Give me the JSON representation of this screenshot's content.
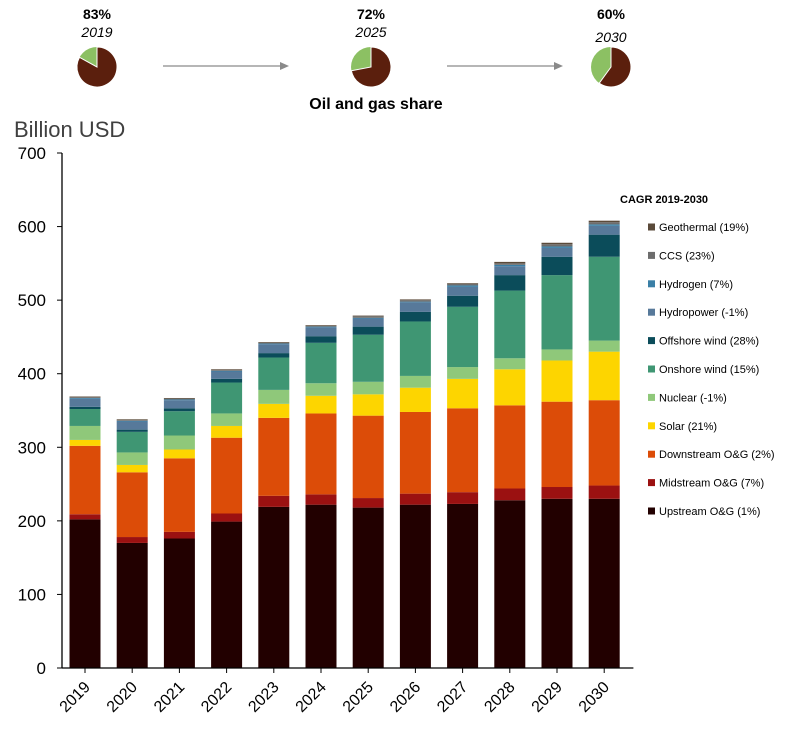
{
  "pies": [
    {
      "share_label": "83%",
      "year_label": "2019",
      "share": 0.83
    },
    {
      "share_label": "72%",
      "year_label": "2025",
      "share": 0.72
    },
    {
      "share_label": "60%",
      "year_label": "2030",
      "share": 0.6
    }
  ],
  "pies_caption": "Oil and gas share",
  "colors": {
    "pie_share": "#5b1f0d",
    "pie_rest": "#8cc063",
    "arrow": "#8a8a8a",
    "axis": "#000000"
  },
  "chart_data": {
    "type": "bar",
    "stacked": true,
    "title": "",
    "ylabel": "Billion USD",
    "xlabel": "",
    "ylim": [
      0,
      700
    ],
    "yticks": [
      0,
      100,
      200,
      300,
      400,
      500,
      600,
      700
    ],
    "categories": [
      "2019",
      "2020",
      "2021",
      "2022",
      "2023",
      "2024",
      "2025",
      "2026",
      "2027",
      "2028",
      "2029",
      "2030"
    ],
    "legend_title": "CAGR 2019-2030",
    "legend_position": "right",
    "series": [
      {
        "name": "Upstream O&G (1%)",
        "color": "#220000",
        "values": [
          202,
          170,
          176,
          199,
          219,
          222,
          218,
          222,
          223,
          228,
          230,
          230
        ]
      },
      {
        "name": "Midstream O&G (7%)",
        "color": "#9b1111",
        "values": [
          7,
          8,
          9,
          11,
          15,
          14,
          13,
          15,
          16,
          16,
          16,
          18
        ]
      },
      {
        "name": "Downstream O&G (2%)",
        "color": "#dc4c08",
        "values": [
          93,
          88,
          100,
          103,
          106,
          110,
          112,
          111,
          114,
          113,
          116,
          116
        ]
      },
      {
        "name": "Solar (21%)",
        "color": "#fdd500",
        "values": [
          8,
          10,
          12,
          16,
          19,
          24,
          29,
          33,
          40,
          49,
          56,
          66
        ]
      },
      {
        "name": "Nuclear (-1%)",
        "color": "#8fc87a",
        "values": [
          19,
          17,
          19,
          17,
          19,
          17,
          17,
          16,
          16,
          15,
          15,
          15
        ]
      },
      {
        "name": "Onshore wind (15%)",
        "color": "#3f9673",
        "values": [
          23,
          28,
          33,
          42,
          44,
          55,
          64,
          74,
          82,
          92,
          101,
          114
        ]
      },
      {
        "name": "Offshore wind (28%)",
        "color": "#0b4c5a",
        "values": [
          3,
          3,
          4,
          5,
          6,
          9,
          11,
          13,
          15,
          21,
          25,
          30
        ]
      },
      {
        "name": "Hydropower (-1%)",
        "color": "#57799a",
        "values": [
          11,
          11,
          11,
          10,
          12,
          12,
          11,
          13,
          12,
          12,
          12,
          12
        ]
      },
      {
        "name": "Hydrogen (7%)",
        "color": "#3a7fa6",
        "values": [
          1,
          1,
          1,
          1,
          1,
          1,
          1,
          1,
          2,
          2,
          2,
          2
        ]
      },
      {
        "name": "CCS (23%)",
        "color": "#6d6d6d",
        "values": [
          1,
          1,
          1,
          1,
          1,
          1,
          2,
          2,
          2,
          2,
          3,
          3
        ]
      },
      {
        "name": "Geothermal (19%)",
        "color": "#5a4a3a",
        "values": [
          1,
          1,
          1,
          1,
          1,
          1,
          1,
          1,
          1,
          2,
          2,
          2
        ]
      }
    ]
  }
}
